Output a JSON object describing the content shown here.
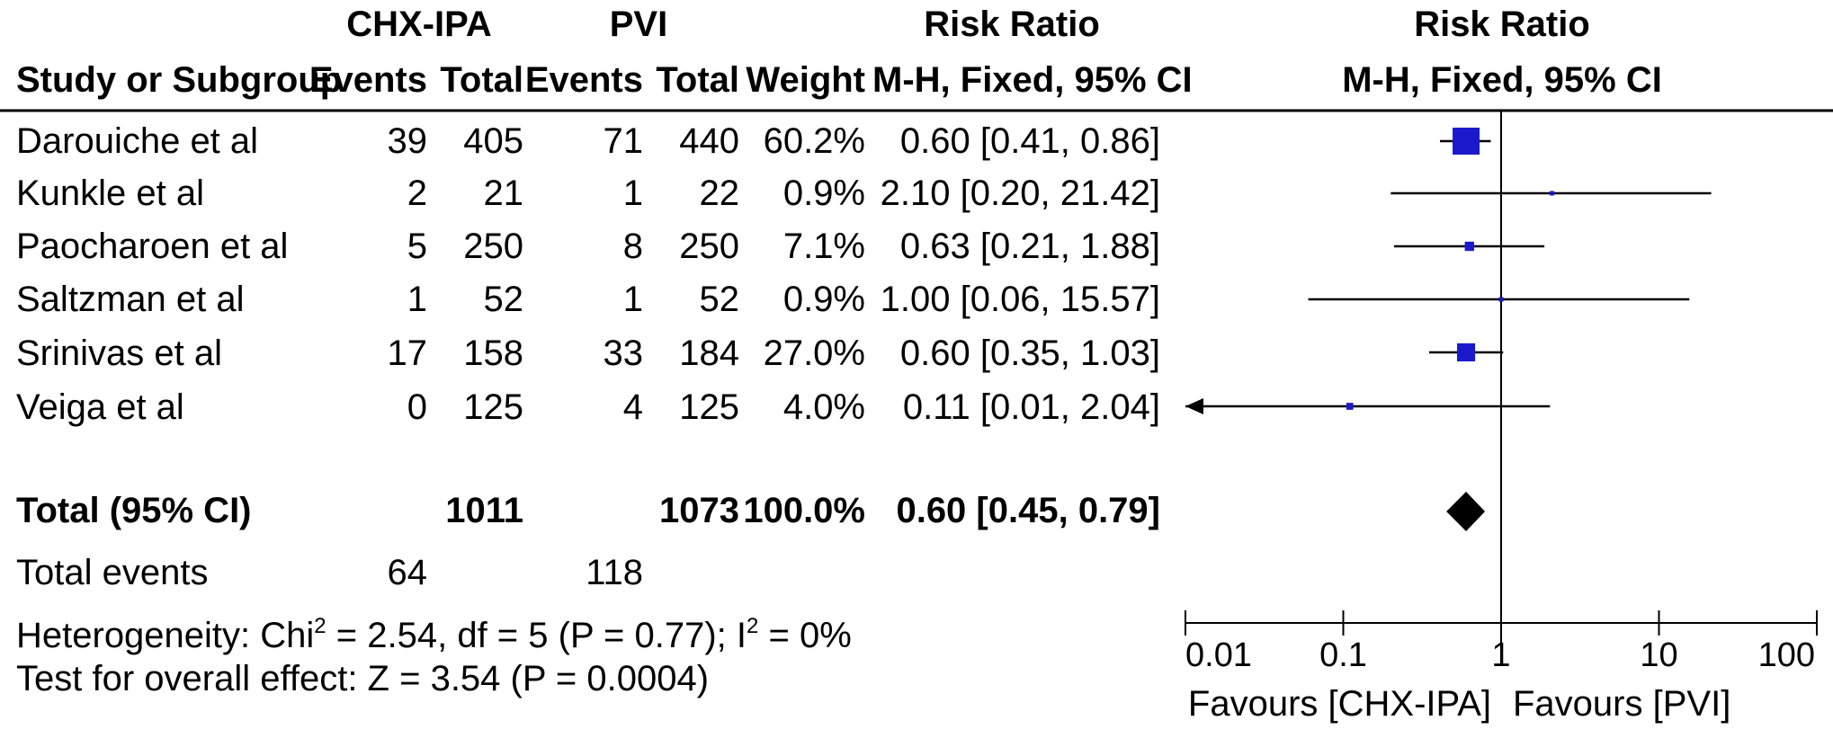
{
  "chart_data": {
    "type": "forest",
    "scale": "log",
    "xlim": [
      0.01,
      100
    ],
    "null_value": 1,
    "header": {
      "group1": "CHX-IPA",
      "group2": "PVI",
      "risk_ratio": "Risk Ratio",
      "study": "Study or Subgroup",
      "events": "Events",
      "total": "Total",
      "weight": "Weight",
      "method": "M-H, Fixed, 95% CI"
    },
    "studies": [
      {
        "name": "Darouiche et al",
        "e1": "39",
        "n1": "405",
        "e2": "71",
        "n2": "440",
        "weight": "60.2%",
        "ci_text": "0.60 [0.41, 0.86]",
        "rr": 0.6,
        "lo": 0.41,
        "hi": 0.86,
        "w": 60.2
      },
      {
        "name": "Kunkle et al",
        "e1": "2",
        "n1": "21",
        "e2": "1",
        "n2": "22",
        "weight": "0.9%",
        "ci_text": "2.10 [0.20, 21.42]",
        "rr": 2.1,
        "lo": 0.2,
        "hi": 21.42,
        "w": 0.9
      },
      {
        "name": "Paocharoen et al",
        "e1": "5",
        "n1": "250",
        "e2": "8",
        "n2": "250",
        "weight": "7.1%",
        "ci_text": "0.63 [0.21, 1.88]",
        "rr": 0.63,
        "lo": 0.21,
        "hi": 1.88,
        "w": 7.1
      },
      {
        "name": "Saltzman et al",
        "e1": "1",
        "n1": "52",
        "e2": "1",
        "n2": "52",
        "weight": "0.9%",
        "ci_text": "1.00 [0.06, 15.57]",
        "rr": 1.0,
        "lo": 0.06,
        "hi": 15.57,
        "w": 0.9
      },
      {
        "name": "Srinivas et al",
        "e1": "17",
        "n1": "158",
        "e2": "33",
        "n2": "184",
        "weight": "27.0%",
        "ci_text": "0.60 [0.35, 1.03]",
        "rr": 0.6,
        "lo": 0.35,
        "hi": 1.03,
        "w": 27.0
      },
      {
        "name": "Veiga et al",
        "e1": "0",
        "n1": "125",
        "e2": "4",
        "n2": "125",
        "weight": "4.0%",
        "ci_text": "0.11 [0.01, 2.04]",
        "rr": 0.11,
        "lo": 0.01,
        "hi": 2.04,
        "w": 4.0
      }
    ],
    "total": {
      "label": "Total (95% CI)",
      "n1": "1011",
      "n2": "1073",
      "weight": "100.0%",
      "ci_text": "0.60 [0.45, 0.79]",
      "rr": 0.6,
      "lo": 0.45,
      "hi": 0.79
    },
    "total_events": {
      "label": "Total events",
      "e1": "64",
      "e2": "118"
    },
    "heterogeneity": {
      "prefix": "Heterogeneity: Chi",
      "mid": " = 2.54, df = 5 (P = 0.77); I",
      "suffix": " = 0%",
      "sup": "2"
    },
    "overall_effect": "Test for overall effect: Z = 3.54 (P = 0.0004)",
    "axis_ticks": [
      "0.01",
      "0.1",
      "1",
      "10",
      "100"
    ],
    "tick_values": [
      0.01,
      0.1,
      1,
      10,
      100
    ],
    "favours_left": "Favours [CHX-IPA]",
    "favours_right": "Favours [PVI]",
    "colors": {
      "marker": "#1a1acc",
      "line": "#000000",
      "diamond": "#000000"
    }
  }
}
